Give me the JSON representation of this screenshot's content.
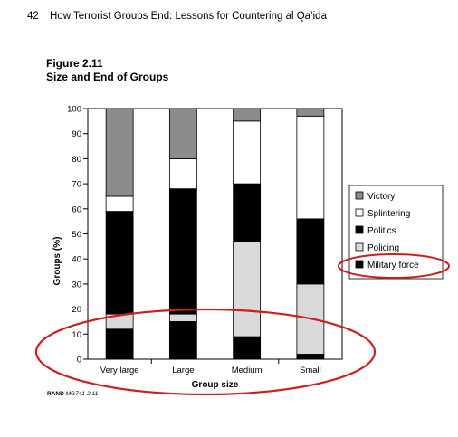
{
  "header": {
    "page_number": "42",
    "running_title": "How Terrorist Groups End: Lessons for Countering al Qa’ida"
  },
  "figure": {
    "label": "Figure 2.11",
    "title": "Size and End of Groups"
  },
  "credit": {
    "org": "RAND",
    "code": "MG741-2.11"
  },
  "chart_data": {
    "type": "bar",
    "stacked": true,
    "title": "Size and End of Groups",
    "xlabel": "Group size",
    "ylabel": "Groups (%)",
    "ylim": [
      0,
      100
    ],
    "yticks": [
      0,
      10,
      20,
      30,
      40,
      50,
      60,
      70,
      80,
      90,
      100
    ],
    "categories": [
      "Very large",
      "Large",
      "Medium",
      "Small"
    ],
    "legend_position": "right",
    "series": [
      {
        "name": "Military force",
        "color": "#000000",
        "values": [
          12,
          15,
          9,
          2
        ]
      },
      {
        "name": "Policing",
        "color": "#d9d9d9",
        "values": [
          6,
          3,
          38,
          28
        ]
      },
      {
        "name": "Politics",
        "color": "#000000",
        "values": [
          41,
          50,
          23,
          26
        ]
      },
      {
        "name": "Splintering",
        "color": "#ffffff",
        "values": [
          6,
          12,
          25,
          41
        ]
      },
      {
        "name": "Victory",
        "color": "#8c8c8c",
        "values": [
          35,
          20,
          5,
          3
        ]
      }
    ],
    "legend_order": [
      "Victory",
      "Splintering",
      "Politics",
      "Policing",
      "Military force"
    ]
  },
  "annotations": {
    "highlight_color": "#cc1f1f"
  }
}
